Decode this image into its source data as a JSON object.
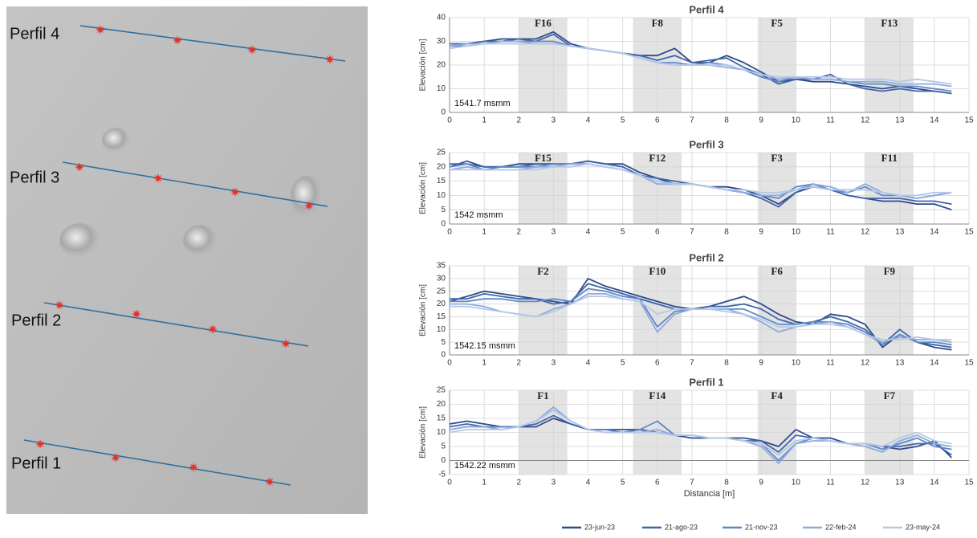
{
  "map": {
    "labels": [
      "Perfil 4",
      "Perfil 3",
      "Perfil 2",
      "Perfil 1"
    ]
  },
  "chart_data": [
    {
      "type": "line",
      "title": "Perfil 4",
      "ylabel": "Elevación  [cm]",
      "annotation": "1541.7 msmm",
      "x": [
        0,
        0.5,
        1,
        1.5,
        2,
        2.5,
        3,
        3.5,
        4,
        4.5,
        5,
        5.5,
        6,
        6.5,
        7,
        7.5,
        8,
        8.5,
        9,
        9.5,
        10,
        10.5,
        11,
        11.5,
        12,
        12.5,
        13,
        13.5,
        14,
        14.5
      ],
      "xlim": [
        0,
        15
      ],
      "xticks": [
        0,
        1,
        2,
        3,
        4,
        5,
        6,
        7,
        8,
        9,
        10,
        11,
        12,
        13,
        14,
        15
      ],
      "ylim": [
        0,
        40
      ],
      "yticks": [
        0,
        10,
        20,
        30,
        40
      ],
      "grid": true,
      "bands": [
        {
          "label": "F16",
          "x0": 2,
          "x1": 3.4
        },
        {
          "label": "F8",
          "x0": 5.3,
          "x1": 6.7
        },
        {
          "label": "F5",
          "x0": 8.9,
          "x1": 10
        },
        {
          "label": "F13",
          "x0": 12,
          "x1": 13.4
        }
      ],
      "series": [
        {
          "color": "#2f4b8a",
          "values": [
            28,
            29,
            30,
            31,
            31,
            31,
            34,
            29,
            27,
            26,
            25,
            24,
            24,
            27,
            21,
            21,
            24,
            21,
            17,
            13,
            14,
            13,
            13,
            12,
            11,
            10,
            11,
            10,
            9,
            8
          ]
        },
        {
          "color": "#3f64a8",
          "values": [
            29,
            29,
            30,
            30,
            31,
            30,
            33,
            28,
            27,
            26,
            25,
            24,
            22,
            24,
            21,
            22,
            23,
            19,
            16,
            12,
            14,
            14,
            16,
            12,
            10,
            9,
            10,
            9,
            9,
            8
          ]
        },
        {
          "color": "#5f88c6",
          "values": [
            28,
            28,
            29,
            30,
            30,
            30,
            30,
            28,
            27,
            26,
            25,
            23,
            21,
            21,
            20,
            21,
            20,
            18,
            15,
            13,
            15,
            14,
            14,
            13,
            12,
            12,
            11,
            11,
            10,
            9
          ]
        },
        {
          "color": "#8eabdb",
          "values": [
            28,
            29,
            29,
            30,
            30,
            29,
            29,
            28,
            27,
            26,
            25,
            23,
            21,
            20,
            20,
            20,
            19,
            18,
            16,
            14,
            15,
            14,
            14,
            13,
            13,
            13,
            12,
            12,
            12,
            11
          ]
        },
        {
          "color": "#b5c8e8",
          "values": [
            27,
            28,
            29,
            29,
            29,
            29,
            29,
            28,
            27,
            26,
            25,
            23,
            21,
            20,
            20,
            20,
            20,
            18,
            16,
            15,
            15,
            15,
            15,
            14,
            14,
            14,
            13,
            14,
            13,
            12
          ]
        }
      ]
    },
    {
      "type": "line",
      "title": "Perfil 3",
      "ylabel": "Elevación  [cm]",
      "annotation": "1542 msmm",
      "x": [
        0,
        0.5,
        1,
        1.5,
        2,
        2.5,
        3,
        3.5,
        4,
        4.5,
        5,
        5.5,
        6,
        6.5,
        7,
        7.5,
        8,
        8.5,
        9,
        9.5,
        10,
        10.5,
        11,
        11.5,
        12,
        12.5,
        13,
        13.5,
        14,
        14.5
      ],
      "xlim": [
        0,
        15
      ],
      "xticks": [
        0,
        1,
        2,
        3,
        4,
        5,
        6,
        7,
        8,
        9,
        10,
        11,
        12,
        13,
        14,
        15
      ],
      "ylim": [
        0,
        25
      ],
      "yticks": [
        0,
        5,
        10,
        15,
        20,
        25
      ],
      "grid": true,
      "bands": [
        {
          "label": "F15",
          "x0": 2,
          "x1": 3.4
        },
        {
          "label": "F12",
          "x0": 5.3,
          "x1": 6.7
        },
        {
          "label": "F3",
          "x0": 8.9,
          "x1": 10
        },
        {
          "label": "F11",
          "x0": 12,
          "x1": 13.4
        }
      ],
      "series": [
        {
          "color": "#2f4b8a",
          "values": [
            20,
            22,
            20,
            20,
            21,
            21,
            21,
            21,
            22,
            21,
            21,
            18,
            16,
            14,
            14,
            13,
            13,
            12,
            10,
            7,
            11,
            13,
            12,
            10,
            9,
            8,
            8,
            7,
            7,
            5
          ]
        },
        {
          "color": "#3f64a8",
          "values": [
            21,
            21,
            20,
            20,
            20,
            21,
            21,
            21,
            22,
            21,
            20,
            17,
            16,
            15,
            14,
            13,
            12,
            11,
            9,
            6,
            11,
            14,
            12,
            10,
            9,
            9,
            9,
            8,
            8,
            7
          ]
        },
        {
          "color": "#5f88c6",
          "values": [
            20,
            21,
            19,
            20,
            20,
            20,
            21,
            21,
            21,
            20,
            19,
            17,
            15,
            14,
            14,
            13,
            12,
            11,
            10,
            9,
            13,
            14,
            12,
            11,
            13,
            10,
            10,
            9,
            10,
            11
          ]
        },
        {
          "color": "#8eabdb",
          "values": [
            19,
            20,
            19,
            19,
            19,
            20,
            20,
            21,
            21,
            20,
            19,
            17,
            14,
            14,
            14,
            13,
            12,
            11,
            10,
            10,
            12,
            14,
            13,
            11,
            14,
            11,
            10,
            9,
            10,
            11
          ]
        },
        {
          "color": "#b5c8e8",
          "values": [
            19,
            19,
            19,
            19,
            19,
            19,
            20,
            20,
            21,
            20,
            19,
            17,
            15,
            14,
            14,
            13,
            12,
            12,
            11,
            11,
            12,
            13,
            12,
            12,
            12,
            11,
            10,
            10,
            11,
            11
          ]
        }
      ]
    },
    {
      "type": "line",
      "title": "Perfil 2",
      "ylabel": "Elevación  [cm]",
      "annotation": "1542.15 msmm",
      "x": [
        0,
        0.5,
        1,
        1.5,
        2,
        2.5,
        3,
        3.5,
        4,
        4.5,
        5,
        5.5,
        6,
        6.5,
        7,
        7.5,
        8,
        8.5,
        9,
        9.5,
        10,
        10.5,
        11,
        11.5,
        12,
        12.5,
        13,
        13.5,
        14,
        14.5
      ],
      "xlim": [
        0,
        15
      ],
      "xticks": [
        0,
        1,
        2,
        3,
        4,
        5,
        6,
        7,
        8,
        9,
        10,
        11,
        12,
        13,
        14,
        15
      ],
      "ylim": [
        0,
        35
      ],
      "yticks": [
        0,
        5,
        10,
        15,
        20,
        25,
        30,
        35
      ],
      "grid": true,
      "bands": [
        {
          "label": "F2",
          "x0": 2,
          "x1": 3.4
        },
        {
          "label": "F10",
          "x0": 5.3,
          "x1": 6.7
        },
        {
          "label": "F6",
          "x0": 8.9,
          "x1": 10
        },
        {
          "label": "F9",
          "x0": 12,
          "x1": 13.4
        }
      ],
      "series": [
        {
          "color": "#2f4b8a",
          "values": [
            21,
            23,
            25,
            24,
            23,
            22,
            21,
            20,
            30,
            27,
            25,
            23,
            21,
            19,
            18,
            19,
            21,
            23,
            20,
            16,
            13,
            12,
            16,
            15,
            12,
            3,
            8,
            5,
            3,
            2
          ]
        },
        {
          "color": "#3f64a8",
          "values": [
            22,
            22,
            24,
            23,
            22,
            22,
            20,
            21,
            28,
            26,
            24,
            22,
            20,
            18,
            18,
            19,
            19,
            20,
            18,
            14,
            12,
            13,
            15,
            13,
            10,
            4,
            10,
            5,
            4,
            3
          ]
        },
        {
          "color": "#5f88c6",
          "values": [
            21,
            21,
            22,
            22,
            21,
            21,
            22,
            21,
            26,
            25,
            23,
            22,
            11,
            17,
            18,
            18,
            18,
            18,
            15,
            12,
            12,
            13,
            13,
            12,
            9,
            4,
            8,
            5,
            5,
            4
          ]
        },
        {
          "color": "#8eabdb",
          "values": [
            20,
            20,
            19,
            17,
            16,
            15,
            18,
            20,
            24,
            24,
            22,
            21,
            9,
            16,
            18,
            18,
            18,
            16,
            13,
            9,
            11,
            12,
            13,
            11,
            8,
            5,
            7,
            6,
            6,
            5
          ]
        },
        {
          "color": "#b5c8e8",
          "values": [
            19,
            19,
            18,
            17,
            16,
            15,
            17,
            20,
            23,
            23,
            22,
            21,
            16,
            18,
            18,
            18,
            17,
            16,
            14,
            11,
            11,
            12,
            12,
            11,
            8,
            6,
            6,
            7,
            6,
            6
          ]
        }
      ]
    },
    {
      "type": "line",
      "title": "Perfil 1",
      "ylabel": "Elevación  [cm]",
      "xlabel": "Distancia [m]",
      "annotation": "1542.22 msmm",
      "x": [
        0,
        0.5,
        1,
        1.5,
        2,
        2.5,
        3,
        3.5,
        4,
        4.5,
        5,
        5.5,
        6,
        6.5,
        7,
        7.5,
        8,
        8.5,
        9,
        9.5,
        10,
        10.5,
        11,
        11.5,
        12,
        12.5,
        13,
        13.5,
        14,
        14.5
      ],
      "xlim": [
        0,
        15
      ],
      "xticks": [
        0,
        1,
        2,
        3,
        4,
        5,
        6,
        7,
        8,
        9,
        10,
        11,
        12,
        13,
        14,
        15
      ],
      "ylim": [
        -5,
        25
      ],
      "yticks": [
        -5,
        0,
        5,
        10,
        15,
        20,
        25
      ],
      "grid": true,
      "bands": [
        {
          "label": "F1",
          "x0": 2,
          "x1": 3.4
        },
        {
          "label": "F14",
          "x0": 5.3,
          "x1": 6.7
        },
        {
          "label": "F4",
          "x0": 8.9,
          "x1": 10
        },
        {
          "label": "F7",
          "x0": 12,
          "x1": 13.4
        }
      ],
      "series": [
        {
          "name": "23-jun-23",
          "color": "#2f4b8a",
          "values": [
            13,
            14,
            13,
            12,
            12,
            12,
            15,
            13,
            11,
            11,
            11,
            11,
            10,
            9,
            8,
            8,
            8,
            8,
            7,
            5,
            11,
            8,
            8,
            6,
            6,
            5,
            4,
            5,
            7,
            1
          ]
        },
        {
          "name": "21-ago-23",
          "color": "#3f64a8",
          "values": [
            12,
            13,
            12,
            12,
            12,
            13,
            16,
            13,
            11,
            11,
            10,
            11,
            10,
            9,
            9,
            8,
            8,
            7,
            7,
            3,
            9,
            8,
            7,
            6,
            6,
            5,
            5,
            6,
            6,
            2
          ]
        },
        {
          "name": "21-nov-23",
          "color": "#5f88c6",
          "values": [
            11,
            12,
            12,
            12,
            12,
            14,
            18,
            14,
            11,
            11,
            10,
            11,
            14,
            9,
            9,
            8,
            8,
            7,
            6,
            0,
            6,
            8,
            7,
            6,
            6,
            4,
            6,
            8,
            5,
            4
          ]
        },
        {
          "name": "22-feb-24",
          "color": "#8eabdb",
          "values": [
            11,
            12,
            12,
            11,
            12,
            14,
            19,
            14,
            11,
            10,
            10,
            10,
            11,
            9,
            9,
            8,
            8,
            7,
            5,
            -1,
            6,
            7,
            7,
            6,
            5,
            3,
            7,
            9,
            6,
            5
          ]
        },
        {
          "name": "23-may-24",
          "color": "#b5c8e8",
          "values": [
            10,
            11,
            11,
            11,
            12,
            14,
            18,
            14,
            11,
            10,
            10,
            10,
            10,
            9,
            9,
            8,
            8,
            7,
            6,
            2,
            7,
            8,
            7,
            6,
            6,
            5,
            8,
            10,
            7,
            6
          ]
        }
      ]
    }
  ]
}
